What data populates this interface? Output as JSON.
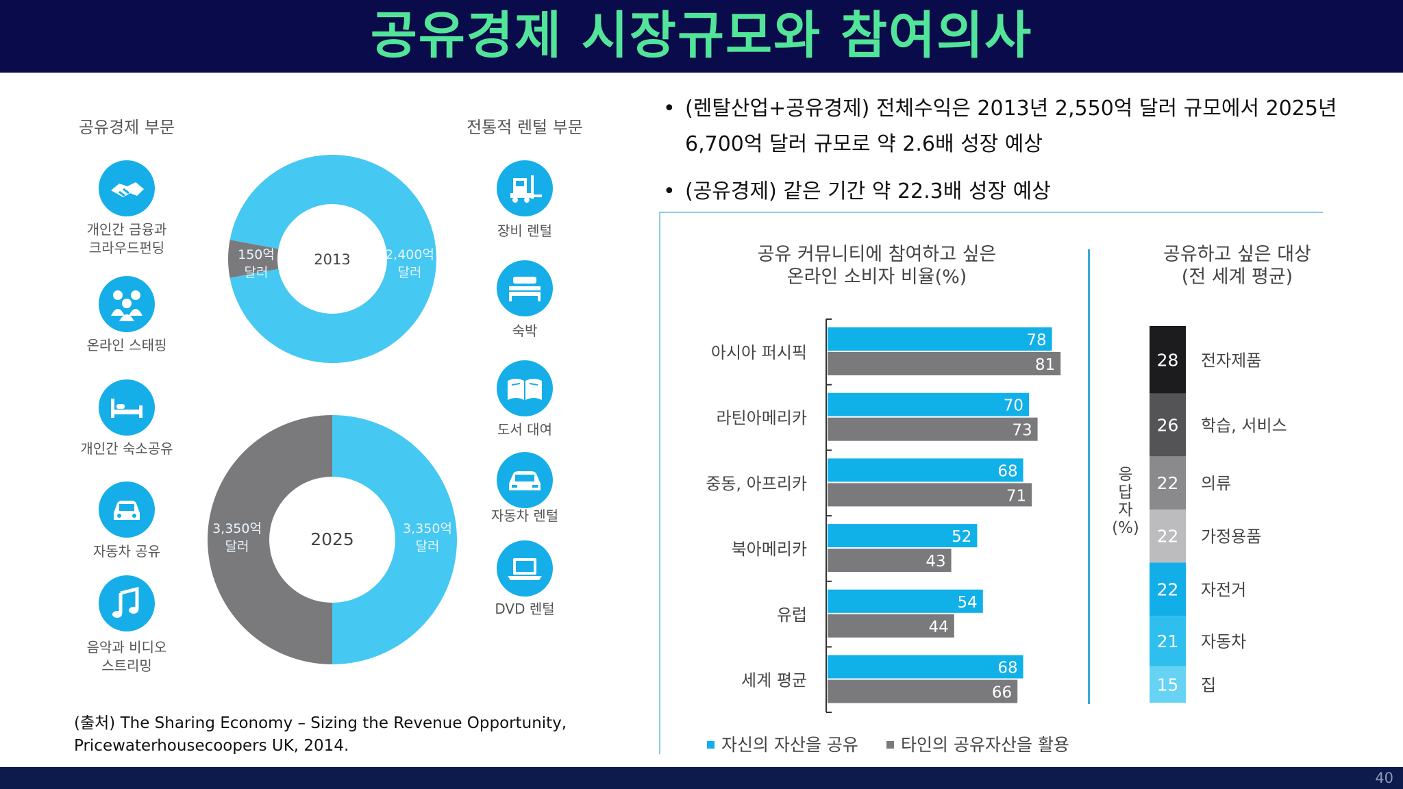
{
  "slide": {
    "title": "공유경제 시장규모와 참여의사",
    "page_number": "40",
    "bullets": [
      "(렌탈산업+공유경제) 전체수익은 2013년 2,550억 달러 규모에서 2025년 6,700억 달러 규모로 약 2.6배 성장 예상",
      "(공유경제) 같은 기간 약 22.3배 성장 예상"
    ],
    "source_line1": "(출처) The Sharing Economy – Sizing the Revenue Opportunity,",
    "source_line2": "Pricewaterhousecoopers UK, 2014."
  },
  "sections": {
    "sharing_header": "공유경제 부문",
    "rental_header": "전통적 렌털 부문",
    "sharing_items": [
      {
        "icon": "handshake-icon",
        "label1": "개인간 금융과",
        "label2": "크라우드펀딩"
      },
      {
        "icon": "people-icon",
        "label1": "온라인 스태핑",
        "label2": ""
      },
      {
        "icon": "bed-icon",
        "label1": "개인간 숙소공유",
        "label2": ""
      },
      {
        "icon": "car-icon",
        "label1": "자동차 공유",
        "label2": ""
      },
      {
        "icon": "music-note-icon",
        "label1": "음악과 비디오",
        "label2": "스트리밍"
      }
    ],
    "rental_items": [
      {
        "icon": "forklift-icon",
        "label": "장비 렌털"
      },
      {
        "icon": "bed-icon",
        "label": "숙박"
      },
      {
        "icon": "book-icon",
        "label": "도서 대여"
      },
      {
        "icon": "car-icon",
        "label": "자동차 렌털"
      },
      {
        "icon": "laptop-icon",
        "label": "DVD 렌털"
      }
    ]
  },
  "colors": {
    "blue": "#16aee8",
    "bar_blue": "#10b0e8",
    "gray": "#7a7a7d",
    "navy": "#0a0b4a",
    "title_green": "#52e59a"
  },
  "chart_data": [
    {
      "type": "pie",
      "donut": true,
      "center_label": "2013",
      "slices": [
        {
          "value": 150,
          "label1": "150억",
          "label2": "달러",
          "color": "#7a7a7d"
        },
        {
          "value": 2400,
          "label1": "2,400억",
          "label2": "달러",
          "color": "#45c8f2"
        }
      ]
    },
    {
      "type": "pie",
      "donut": true,
      "center_label": "2025",
      "slices": [
        {
          "value": 3350,
          "label1": "3,350억",
          "label2": "달러",
          "color": "#45c8f2"
        },
        {
          "value": 3350,
          "label1": "3,350억",
          "label2": "달러",
          "color": "#7a7a7d"
        }
      ]
    },
    {
      "type": "bar",
      "orientation": "horizontal",
      "title_line1": "공유 커뮤니티에 참여하고 싶은",
      "title_line2": "온라인 소비자 비율(%)",
      "categories": [
        "아시아 퍼시픽",
        "라틴아메리카",
        "중동, 아프리카",
        "북아메리카",
        "유럽",
        "세계 평균"
      ],
      "series": [
        {
          "name": "자신의 자산을 공유",
          "color": "#10b0e8",
          "values": [
            78,
            70,
            68,
            52,
            54,
            68
          ]
        },
        {
          "name": "타인의 공유자산을 활용",
          "color": "#7a7a7d",
          "values": [
            81,
            73,
            71,
            43,
            44,
            66
          ]
        }
      ],
      "xlim": [
        0,
        100
      ],
      "legend_position": "bottom"
    },
    {
      "type": "bar",
      "stacked": true,
      "title_line1": "공유하고 싶은 대상",
      "title_line2": "(전 세계 평균)",
      "ylabel_chars": [
        "응",
        "답",
        "자",
        "(%)"
      ],
      "segments": [
        {
          "label": "전자제품",
          "value": 28,
          "color": "#1c1c1e",
          "text_color": "#ffffff"
        },
        {
          "label": "학습, 서비스",
          "value": 26,
          "color": "#545457",
          "text_color": "#ffffff"
        },
        {
          "label": "의류",
          "value": 22,
          "color": "#8a8a8d",
          "text_color": "#ffffff"
        },
        {
          "label": "가정용품",
          "value": 22,
          "color": "#bcbcbe",
          "text_color": "#ffffff"
        },
        {
          "label": "자전거",
          "value": 22,
          "color": "#12aee8",
          "text_color": "#ffffff"
        },
        {
          "label": "자동차",
          "value": 21,
          "color": "#2ebfee",
          "text_color": "#ffffff"
        },
        {
          "label": "집",
          "value": 15,
          "color": "#66d3f5",
          "text_color": "#ffffff"
        }
      ]
    }
  ]
}
